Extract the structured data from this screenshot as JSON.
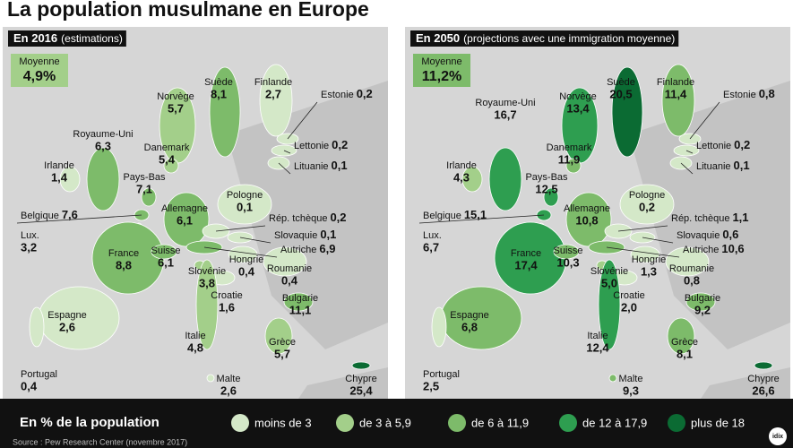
{
  "title": "La population musulmane en Europe",
  "panels": [
    {
      "header": "En 2016",
      "subheader": "(estimations)",
      "average_label": "Moyenne",
      "average": "4,9%",
      "average_color": "#a3cf8a",
      "countries": [
        {
          "name": "Norvège",
          "value": "5,7",
          "color": "#a3cf8a"
        },
        {
          "name": "Suède",
          "value": "8,1",
          "color": "#7dbb6a"
        },
        {
          "name": "Finlande",
          "value": "2,7",
          "color": "#d4e8c8"
        },
        {
          "name": "Estonie",
          "value": "0,2",
          "color": "#d4e8c8"
        },
        {
          "name": "Royaume-Uni",
          "value": "6,3",
          "color": "#7dbb6a"
        },
        {
          "name": "Danemark",
          "value": "5,4",
          "color": "#a3cf8a"
        },
        {
          "name": "Lettonie",
          "value": "0,2",
          "color": "#d4e8c8"
        },
        {
          "name": "Lituanie",
          "value": "0,1",
          "color": "#d4e8c8"
        },
        {
          "name": "Irlande",
          "value": "1,4",
          "color": "#d4e8c8"
        },
        {
          "name": "Pays-Bas",
          "value": "7,1",
          "color": "#7dbb6a"
        },
        {
          "name": "Pologne",
          "value": "0,1",
          "color": "#d4e8c8"
        },
        {
          "name": "Belgique",
          "value": "7,6",
          "color": "#7dbb6a"
        },
        {
          "name": "Allemagne",
          "value": "6,1",
          "color": "#7dbb6a"
        },
        {
          "name": "Rép. tchèque",
          "value": "0,2",
          "color": "#d4e8c8"
        },
        {
          "name": "Lux.",
          "value": "3,2",
          "color": "#a3cf8a"
        },
        {
          "name": "Slovaquie",
          "value": "0,1",
          "color": "#d4e8c8"
        },
        {
          "name": "Autriche",
          "value": "6,9",
          "color": "#7dbb6a"
        },
        {
          "name": "France",
          "value": "8,8",
          "color": "#7dbb6a"
        },
        {
          "name": "Suisse",
          "value": "6,1",
          "color": "#7dbb6a"
        },
        {
          "name": "Hongrie",
          "value": "0,4",
          "color": "#d4e8c8"
        },
        {
          "name": "Slovénie",
          "value": "3,8",
          "color": "#a3cf8a"
        },
        {
          "name": "Roumanie",
          "value": "0,4",
          "color": "#d4e8c8"
        },
        {
          "name": "Croatie",
          "value": "1,6",
          "color": "#d4e8c8"
        },
        {
          "name": "Bulgarie",
          "value": "11,1",
          "color": "#7dbb6a"
        },
        {
          "name": "Espagne",
          "value": "2,6",
          "color": "#d4e8c8"
        },
        {
          "name": "Italie",
          "value": "4,8",
          "color": "#a3cf8a"
        },
        {
          "name": "Grèce",
          "value": "5,7",
          "color": "#a3cf8a"
        },
        {
          "name": "Portugal",
          "value": "0,4",
          "color": "#d4e8c8"
        },
        {
          "name": "Malte",
          "value": "2,6",
          "color": "#d4e8c8"
        },
        {
          "name": "Chypre",
          "value": "25,4",
          "color": "#0b6b33"
        }
      ]
    },
    {
      "header": "En 2050",
      "subheader": "(projections avec une immigration moyenne)",
      "average_label": "Moyenne",
      "average": "11,2%",
      "average_color": "#7dbb6a",
      "countries": [
        {
          "name": "Norvège",
          "value": "13,4",
          "color": "#2e9e50"
        },
        {
          "name": "Suède",
          "value": "20,5",
          "color": "#0b6b33"
        },
        {
          "name": "Finlande",
          "value": "11,4",
          "color": "#7dbb6a"
        },
        {
          "name": "Estonie",
          "value": "0,8",
          "color": "#d4e8c8"
        },
        {
          "name": "Royaume-Uni",
          "value": "16,7",
          "color": "#2e9e50"
        },
        {
          "name": "Danemark",
          "value": "11,9",
          "color": "#7dbb6a"
        },
        {
          "name": "Lettonie",
          "value": "0,2",
          "color": "#d4e8c8"
        },
        {
          "name": "Lituanie",
          "value": "0,1",
          "color": "#d4e8c8"
        },
        {
          "name": "Irlande",
          "value": "4,3",
          "color": "#a3cf8a"
        },
        {
          "name": "Pays-Bas",
          "value": "12,5",
          "color": "#2e9e50"
        },
        {
          "name": "Pologne",
          "value": "0,2",
          "color": "#d4e8c8"
        },
        {
          "name": "Belgique",
          "value": "15,1",
          "color": "#2e9e50"
        },
        {
          "name": "Allemagne",
          "value": "10,8",
          "color": "#7dbb6a"
        },
        {
          "name": "Rép. tchèque",
          "value": "1,1",
          "color": "#d4e8c8"
        },
        {
          "name": "Lux.",
          "value": "6,7",
          "color": "#7dbb6a"
        },
        {
          "name": "Slovaquie",
          "value": "0,6",
          "color": "#d4e8c8"
        },
        {
          "name": "Autriche",
          "value": "10,6",
          "color": "#7dbb6a"
        },
        {
          "name": "France",
          "value": "17,4",
          "color": "#2e9e50"
        },
        {
          "name": "Suisse",
          "value": "10,3",
          "color": "#7dbb6a"
        },
        {
          "name": "Hongrie",
          "value": "1,3",
          "color": "#d4e8c8"
        },
        {
          "name": "Slovénie",
          "value": "5,0",
          "color": "#a3cf8a"
        },
        {
          "name": "Roumanie",
          "value": "0,8",
          "color": "#d4e8c8"
        },
        {
          "name": "Croatie",
          "value": "2,0",
          "color": "#d4e8c8"
        },
        {
          "name": "Bulgarie",
          "value": "9,2",
          "color": "#7dbb6a"
        },
        {
          "name": "Espagne",
          "value": "6,8",
          "color": "#7dbb6a"
        },
        {
          "name": "Italie",
          "value": "12,4",
          "color": "#2e9e50"
        },
        {
          "name": "Grèce",
          "value": "8,1",
          "color": "#7dbb6a"
        },
        {
          "name": "Portugal",
          "value": "2,5",
          "color": "#d4e8c8"
        },
        {
          "name": "Malte",
          "value": "9,3",
          "color": "#7dbb6a"
        },
        {
          "name": "Chypre",
          "value": "26,6",
          "color": "#0b6b33"
        }
      ]
    }
  ],
  "legend": {
    "title": "En % de la population",
    "items": [
      {
        "label": "moins de 3",
        "color": "#d4e8c8"
      },
      {
        "label": "de 3 à 5,9",
        "color": "#a3cf8a"
      },
      {
        "label": "de 6 à 11,9",
        "color": "#7dbb6a"
      },
      {
        "label": "de 12 à 17,9",
        "color": "#2e9e50"
      },
      {
        "label": "plus de 18",
        "color": "#0b6b33"
      }
    ]
  },
  "source": "Source : Pew Research Center (novembre 2017)",
  "logo": "idix"
}
